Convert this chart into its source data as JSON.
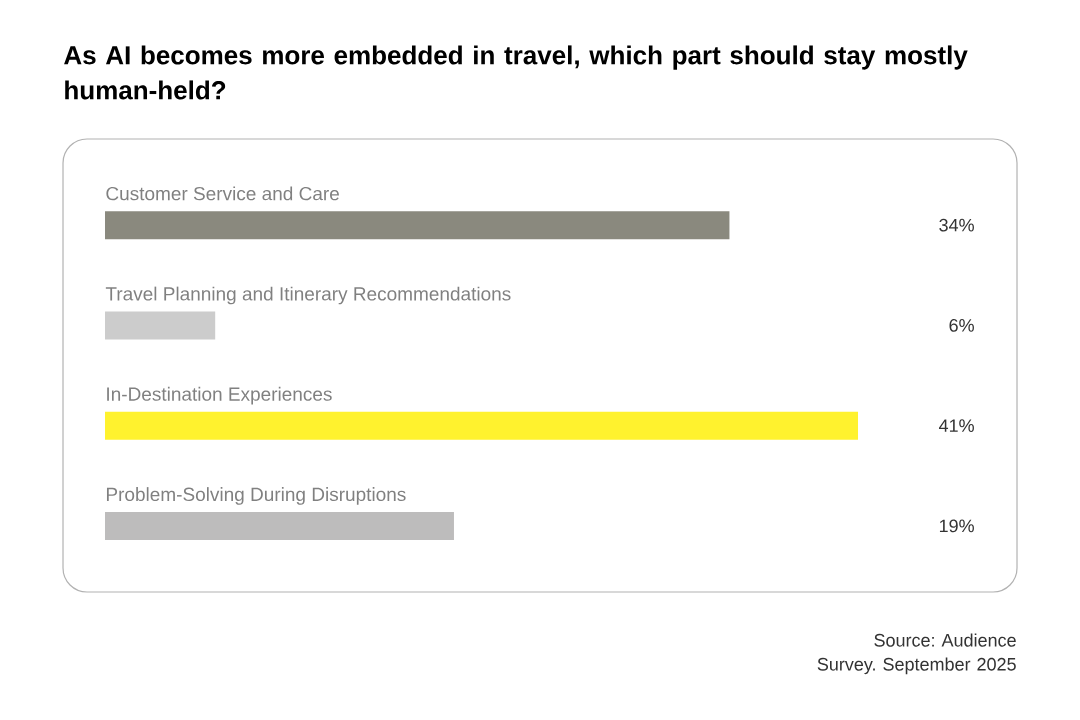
{
  "chart_data": {
    "type": "bar",
    "orientation": "horizontal",
    "tick_labels": false,
    "title": "As AI becomes more embedded in travel, which part should stay mostly human-held?",
    "categories": [
      "Customer Service and Care",
      "Travel Planning and Itinerary Recommendations",
      "In-Destination Experiences",
      "Problem-Solving During Disruptions"
    ],
    "values": [
      34,
      6,
      41,
      19
    ],
    "colors": [
      "#8a897e",
      "#cccccc",
      "#fff22e",
      "#bdbcbc"
    ],
    "value_labels": [
      "34%",
      "6%",
      "41%",
      "19%"
    ],
    "annotations": [
      "Source: Audience Survey. September 2025"
    ]
  }
}
